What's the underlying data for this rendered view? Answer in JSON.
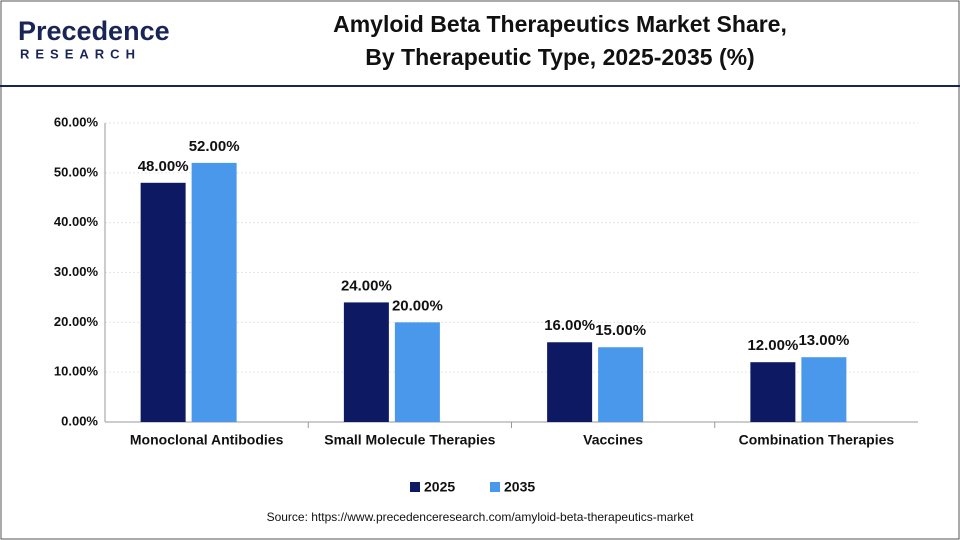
{
  "logo": {
    "name": "Precedence",
    "tagline": "RESEARCH"
  },
  "chart_data": {
    "type": "bar",
    "title": [
      "Amyloid Beta Therapeutics Market Share,",
      "By Therapeutic Type, 2025-2035 (%)"
    ],
    "categories": [
      "Monoclonal Antibodies",
      "Small Molecule Therapies",
      "Vaccines",
      "Combination Therapies"
    ],
    "series": [
      {
        "name": "2025",
        "color": "#0d1a63",
        "values": [
          48,
          24,
          16,
          12
        ],
        "value_labels": [
          "48.00%",
          "24.00%",
          "16.00%",
          "12.00%"
        ]
      },
      {
        "name": "2035",
        "color": "#4a98ec",
        "values": [
          52,
          20,
          15,
          13
        ],
        "value_labels": [
          "52.00%",
          "20.00%",
          "15.00%",
          "13.00%"
        ]
      }
    ],
    "ylim": [
      0,
      60
    ],
    "yticks": [
      {
        "value": 0,
        "label": "0.00%"
      },
      {
        "value": 10,
        "label": "10.00%"
      },
      {
        "value": 20,
        "label": "20.00%"
      },
      {
        "value": 30,
        "label": "30.00%"
      },
      {
        "value": 40,
        "label": "40.00%"
      },
      {
        "value": 50,
        "label": "50.00%"
      },
      {
        "value": 60,
        "label": "60.00%"
      }
    ],
    "grid": true,
    "legend": "bottom",
    "source": "Source: https://www.precedenceresearch.com/amyloid-beta-therapeutics-market"
  }
}
